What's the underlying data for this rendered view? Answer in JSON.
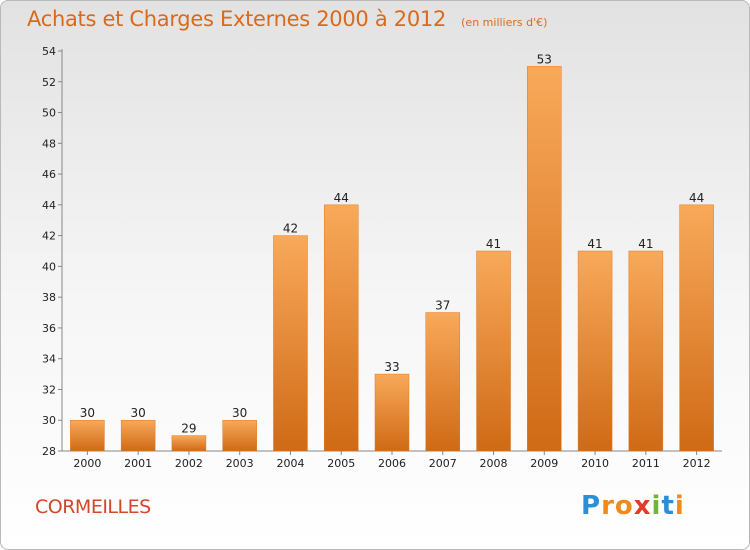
{
  "title": "Achats et Charges Externes 2000 à 2012",
  "subtitle": "(en milliers d'€)",
  "town": "CORMEILLES",
  "logo": {
    "letters": [
      "P",
      "r",
      "o",
      "x",
      "i",
      "t",
      "i"
    ],
    "colors": [
      "#2a8fd6",
      "#f08a1c",
      "#f08a1c",
      "#e23b2a",
      "#6fb53b",
      "#2a8fd6",
      "#f08a1c"
    ]
  },
  "colors": {
    "bar_light": "#f8a95a",
    "bar_dark": "#cf6a16",
    "title": "#d96a1c",
    "town": "#d4452a"
  },
  "chart_data": {
    "type": "bar",
    "categories": [
      "2000",
      "2001",
      "2002",
      "2003",
      "2004",
      "2005",
      "2006",
      "2007",
      "2008",
      "2009",
      "2010",
      "2011",
      "2012"
    ],
    "values": [
      30,
      30,
      29,
      30,
      42,
      44,
      33,
      37,
      41,
      53,
      41,
      41,
      44
    ],
    "title": "Achats et Charges Externes 2000 à 2012",
    "xlabel": "",
    "ylabel": "",
    "ylim": [
      28,
      54
    ],
    "yticks": [
      28,
      30,
      32,
      34,
      36,
      38,
      40,
      42,
      44,
      46,
      48,
      50,
      52,
      54
    ],
    "grid": false,
    "data_labels": true
  }
}
